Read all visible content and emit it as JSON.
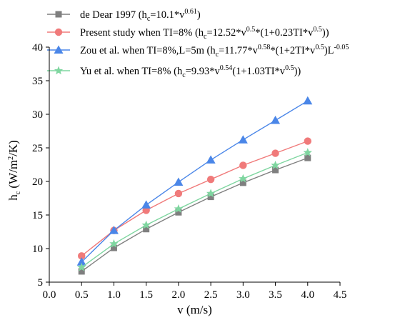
{
  "chart_data": {
    "type": "line",
    "xlabel": "v (m/s)",
    "ylabel": "h_c (W/m^2/K)",
    "xlim": [
      0.0,
      4.5
    ],
    "ylim": [
      5,
      40
    ],
    "x_ticks": [
      "0.0",
      "0.5",
      "1.0",
      "1.5",
      "2.0",
      "2.5",
      "3.0",
      "3.5",
      "4.0",
      "4.5"
    ],
    "y_ticks": [
      "5",
      "10",
      "15",
      "20",
      "25",
      "30",
      "35",
      "40"
    ],
    "grid": false,
    "legend_position": "top-left",
    "x": [
      0.5,
      1.0,
      1.5,
      2.0,
      2.5,
      3.0,
      3.5,
      4.0
    ],
    "series": [
      {
        "name": "de Dear 1997 (h_c=10.1*v^0.61)",
        "marker": "square",
        "color": "#7f7f7f",
        "values": [
          6.6,
          10.1,
          12.9,
          15.4,
          17.7,
          19.8,
          21.7,
          23.5
        ]
      },
      {
        "name": "Present study when TI=8% (h_c=12.52*v^0.5*(1+0.23TI*v^0.5))",
        "marker": "circle",
        "color": "#f07a7a",
        "values": [
          8.9,
          12.7,
          15.7,
          18.2,
          20.3,
          22.4,
          24.2,
          26.0
        ]
      },
      {
        "name": "Zou et al. when TI=8%,L=5m (h_c=11.77*v^0.58*(1+2TI*v^0.5)L^-0.05)",
        "marker": "triangle",
        "color": "#4a86e8",
        "values": [
          8.0,
          12.7,
          16.5,
          19.9,
          23.2,
          26.2,
          29.1,
          32.0
        ]
      },
      {
        "name": "Yu et al. when TI=8% (h_c=9.93*v^0.54(1+1.03TI*v^0.5))",
        "marker": "star",
        "color": "#7fd6a0",
        "values": [
          7.2,
          10.7,
          13.5,
          15.9,
          18.2,
          20.4,
          22.4,
          24.3
        ]
      }
    ]
  },
  "legend_rich": [
    [
      [
        "t",
        "de Dear 1997 (h"
      ],
      [
        "sub",
        "c"
      ],
      [
        "t",
        "=10.1*v"
      ],
      [
        "sup",
        "0.61"
      ],
      [
        "t",
        ")"
      ]
    ],
    [
      [
        "t",
        "Present study when TI=8% (h"
      ],
      [
        "sub",
        "c"
      ],
      [
        "t",
        "=12.52*v"
      ],
      [
        "sup",
        "0.5"
      ],
      [
        "t",
        "*(1+0.23TI*v"
      ],
      [
        "sup",
        "0.5"
      ],
      [
        "t",
        "))"
      ]
    ],
    [
      [
        "t",
        "Zou et al. when TI=8%,L=5m (h"
      ],
      [
        "sub",
        "c"
      ],
      [
        "t",
        "=11.77*v"
      ],
      [
        "sup",
        "0.58"
      ],
      [
        "t",
        "*(1+2TI*v"
      ],
      [
        "sup",
        "0.5"
      ],
      [
        "t",
        ")L"
      ],
      [
        "sup",
        "-0.05"
      ]
    ],
    [
      [
        "t",
        "Yu et al. when TI=8% (h"
      ],
      [
        "sub",
        "c"
      ],
      [
        "t",
        "=9.93*v"
      ],
      [
        "sup",
        "0.54"
      ],
      [
        "t",
        "(1+1.03TI*v"
      ],
      [
        "sup",
        "0.5"
      ],
      [
        "t",
        "))"
      ]
    ]
  ],
  "ylabel_rich": [
    [
      "t",
      "h"
    ],
    [
      "sub",
      "c"
    ],
    [
      "t",
      " (W/m"
    ],
    [
      "sup",
      "2"
    ],
    [
      "t",
      "/K)"
    ]
  ]
}
